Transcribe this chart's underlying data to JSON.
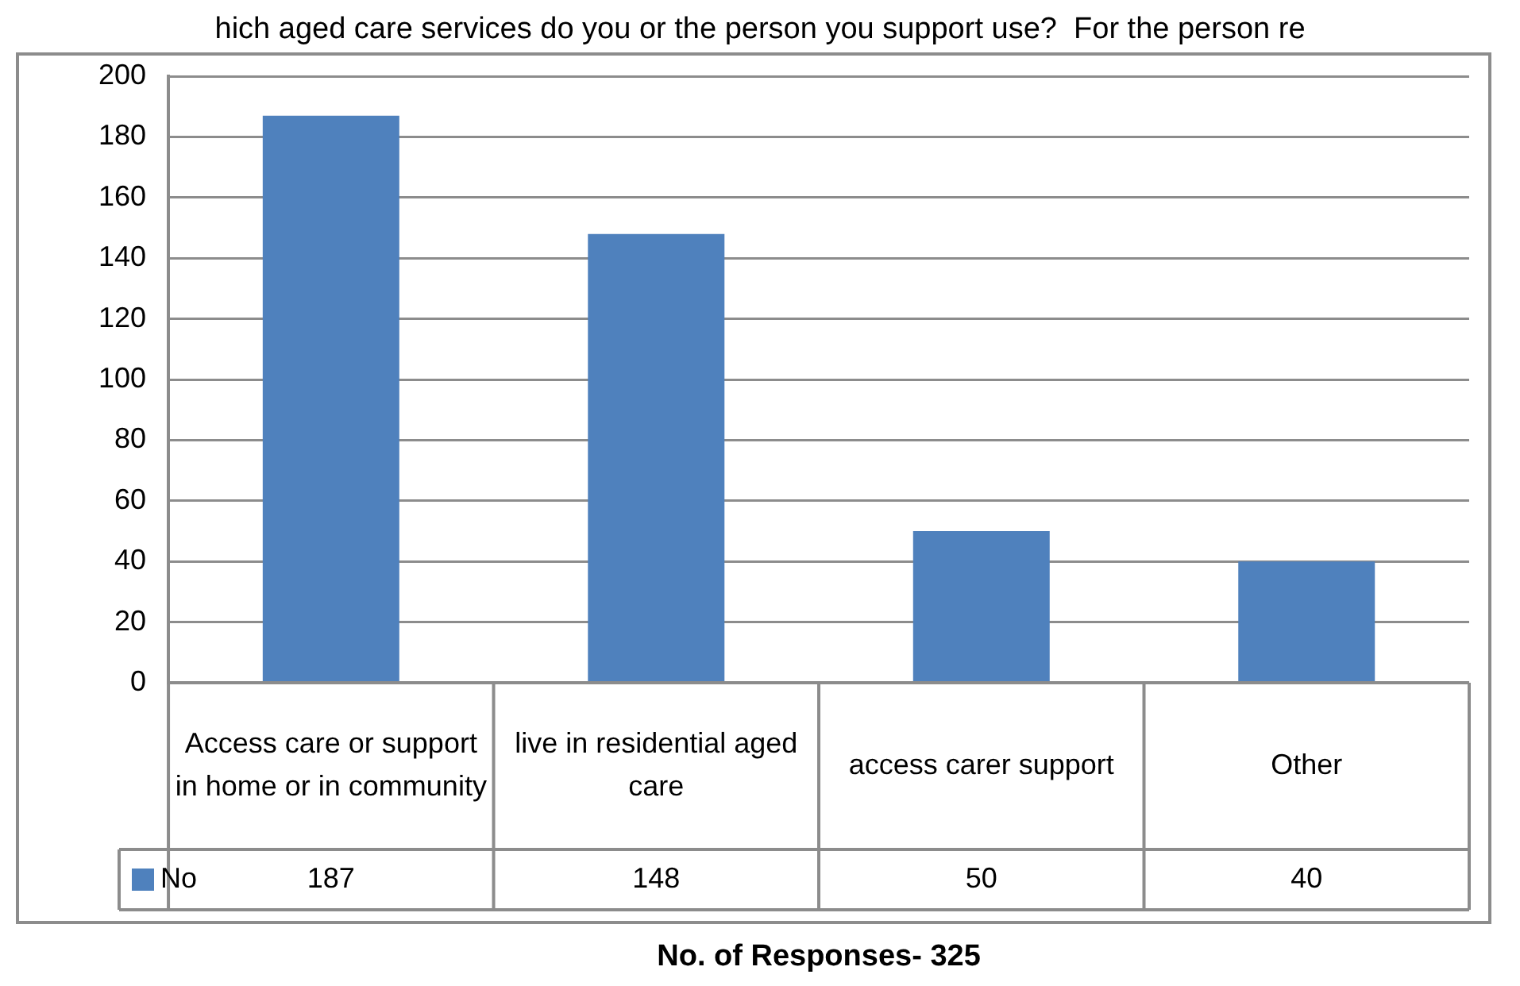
{
  "chart_data": {
    "type": "bar",
    "title": "hich aged care services do you or the person you support use?  For the person re",
    "xlabel": "No. of Responses- 325",
    "categories": [
      "Access care or support in home or in community",
      "live in residential aged care",
      "access carer support",
      "Other"
    ],
    "series": [
      {
        "name": "No",
        "color": "#4f81bd",
        "values": [
          187,
          148,
          50,
          40
        ]
      }
    ],
    "ylim": [
      0,
      200
    ],
    "yticks": [
      0,
      20,
      40,
      60,
      80,
      100,
      120,
      140,
      160,
      180,
      200
    ],
    "grid": "y",
    "legend": "bottom",
    "data_labels": true
  }
}
